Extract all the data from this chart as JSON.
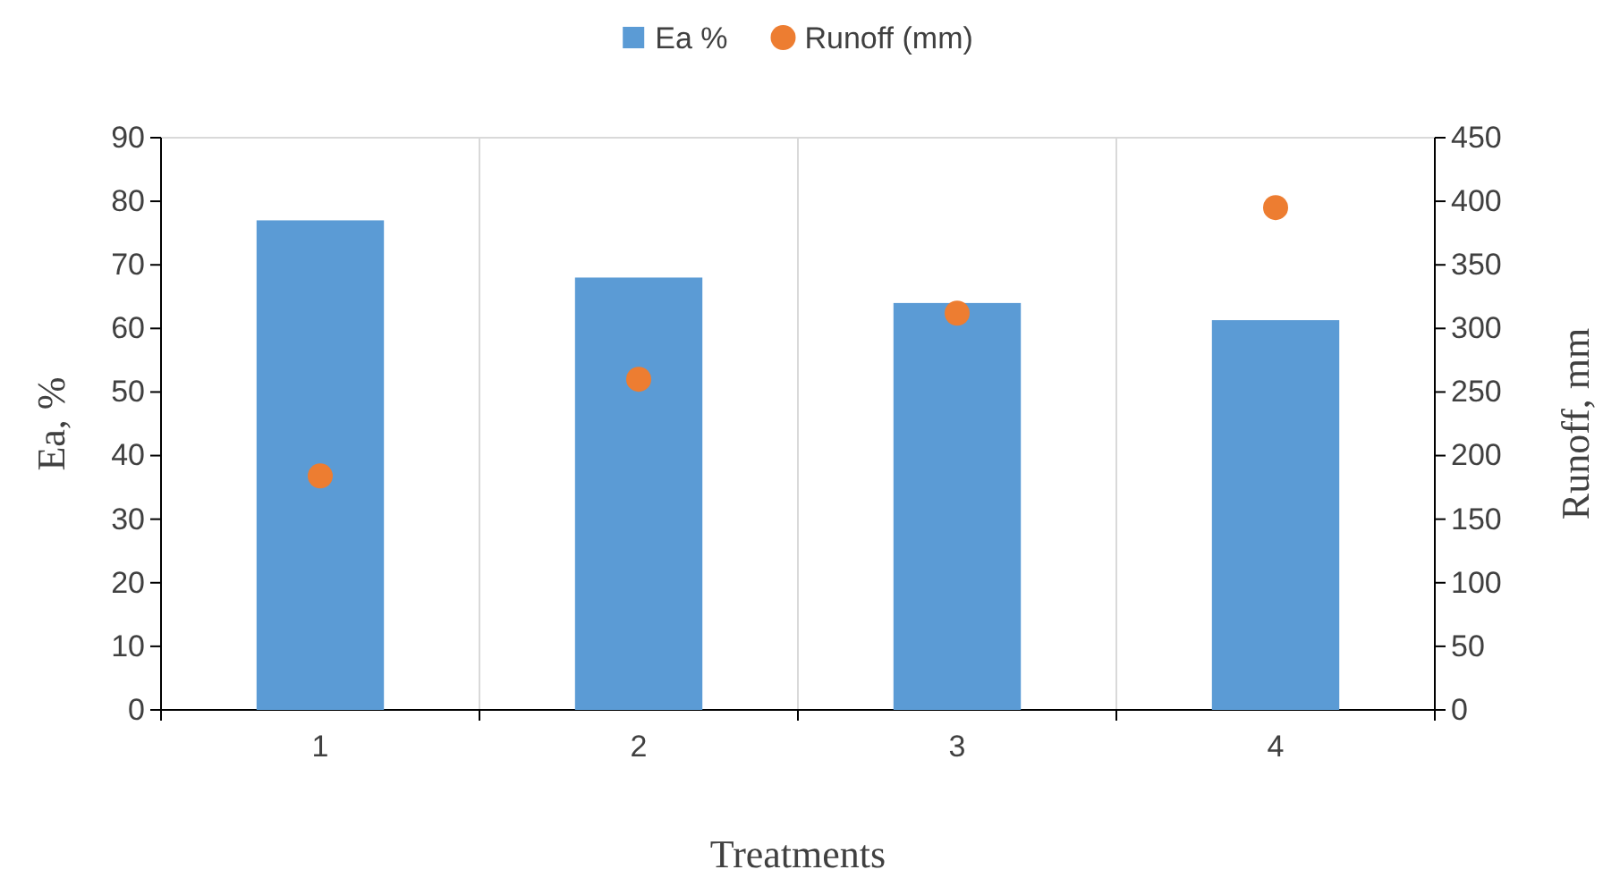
{
  "chart_data": {
    "type": "bar",
    "xlabel": "Treatments",
    "ylabel": "Ea, %",
    "y2label": "Runoff, mm",
    "categories": [
      "1",
      "2",
      "3",
      "4"
    ],
    "series": [
      {
        "name": "Ea %",
        "color": "#5b9bd5",
        "values": [
          77,
          68,
          64,
          61.3
        ]
      },
      {
        "name": "Runoff (mm)",
        "type": "scatter",
        "axis": "y2",
        "color": "#ed7d31",
        "marker": "circle",
        "values": [
          184,
          260,
          312,
          395
        ]
      }
    ],
    "ylim": [
      0,
      90
    ],
    "yticks": [
      0,
      10,
      20,
      30,
      40,
      50,
      60,
      70,
      80,
      90
    ],
    "y2lim": [
      0,
      450
    ],
    "y2ticks": [
      0,
      50,
      100,
      150,
      200,
      250,
      300,
      350,
      400,
      450
    ],
    "grid": "x",
    "legend": "top"
  }
}
